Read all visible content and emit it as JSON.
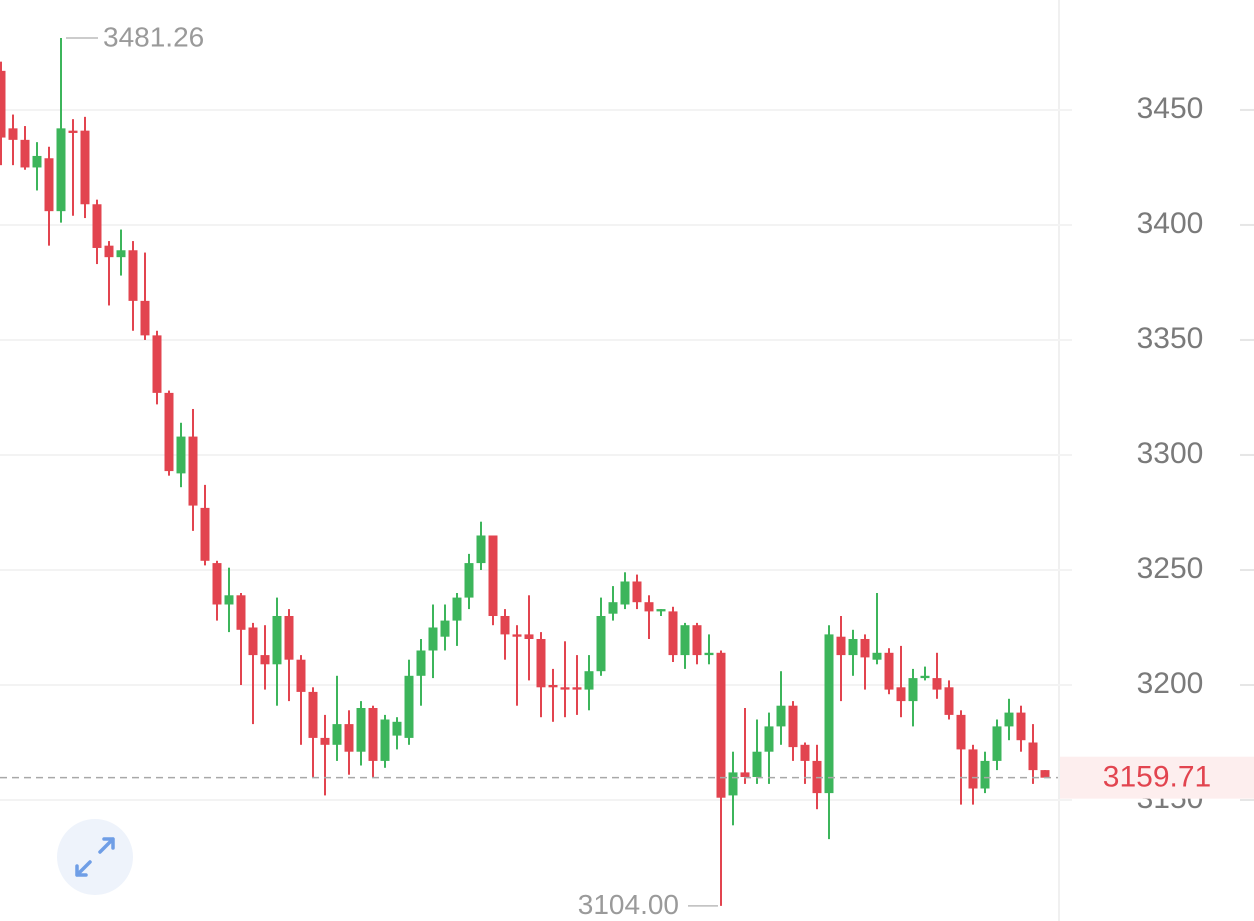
{
  "chart_data": {
    "type": "candlestick",
    "open": [
      3467,
      3442,
      3437,
      3425,
      3429,
      3406,
      3441,
      3441,
      3409,
      3391,
      3386,
      3389,
      3367,
      3352,
      3327,
      3292,
      3308,
      3277,
      3253,
      3235,
      3239,
      3225,
      3213,
      3209,
      3230,
      3211,
      3197,
      3177,
      3174,
      3183,
      3171,
      3190,
      3167,
      3178,
      3177,
      3204,
      3215,
      3221,
      3228,
      3238,
      3253,
      3265,
      3230,
      3222,
      3222,
      3220,
      3200,
      3199,
      3199,
      3198,
      3206,
      3231,
      3235,
      3245,
      3236,
      3232,
      3232,
      3213,
      3226,
      3213,
      3214,
      3152,
      3162,
      3160,
      3171,
      3182,
      3191,
      3174,
      3167,
      3153,
      3221,
      3213,
      3220,
      3211,
      3214,
      3199,
      3193,
      3203,
      3203,
      3199,
      3187,
      3172,
      3155,
      3167,
      3182,
      3188,
      3175,
      3163
    ],
    "high": [
      3471,
      3448,
      3443,
      3436,
      3434,
      3481.26,
      3446,
      3447,
      3411,
      3393,
      3398,
      3393,
      3388,
      3354,
      3328,
      3314,
      3320,
      3287,
      3254,
      3251,
      3240,
      3227,
      3226,
      3238,
      3233,
      3213,
      3199,
      3187,
      3204,
      3189,
      3193,
      3191,
      3187,
      3186,
      3211,
      3220,
      3235,
      3235,
      3240,
      3257,
      3271,
      3265,
      3233,
      3226,
      3239,
      3223,
      3207,
      3219,
      3213,
      3213,
      3238,
      3243,
      3249,
      3248,
      3239,
      3233,
      3234,
      3227,
      3227,
      3222,
      3215,
      3171,
      3190,
      3185,
      3188,
      3206,
      3193,
      3175,
      3174,
      3226,
      3230,
      3224,
      3222,
      3240,
      3216,
      3217,
      3207,
      3208,
      3214,
      3202,
      3189,
      3174,
      3171,
      3185,
      3194,
      3191,
      3183,
      3163
    ],
    "low": [
      3426,
      3426,
      3424,
      3415,
      3391,
      3401,
      3404,
      3403,
      3383,
      3365,
      3378,
      3354,
      3350,
      3322,
      3291,
      3286,
      3267,
      3252,
      3228,
      3223,
      3200,
      3183,
      3198,
      3191,
      3193,
      3174,
      3160,
      3152,
      3167,
      3161,
      3165,
      3160,
      3164,
      3172,
      3174,
      3191,
      3203,
      3215,
      3217,
      3233,
      3250,
      3226,
      3211,
      3191,
      3202,
      3186,
      3184,
      3186,
      3187,
      3189,
      3204,
      3228,
      3233,
      3233,
      3220,
      3230,
      3210,
      3207,
      3209,
      3209,
      3104,
      3139,
      3157,
      3157,
      3157,
      3174,
      3167,
      3157,
      3146,
      3133,
      3193,
      3204,
      3198,
      3209,
      3196,
      3186,
      3182,
      3202,
      3194,
      3185,
      3148,
      3148,
      3153,
      3163,
      3176,
      3171,
      3157,
      3159.71
    ],
    "close": [
      3438,
      3437,
      3425,
      3430,
      3406,
      3442,
      3440,
      3409,
      3390,
      3386,
      3389,
      3367,
      3352,
      3327,
      3293,
      3308,
      3278,
      3254,
      3235,
      3239,
      3224,
      3213,
      3209,
      3230,
      3211,
      3197,
      3177,
      3174,
      3183,
      3171,
      3190,
      3167,
      3185,
      3184,
      3204,
      3215,
      3225,
      3228,
      3238,
      3253,
      3265,
      3230,
      3222,
      3221,
      3220,
      3199,
      3199,
      3198,
      3198,
      3206,
      3230,
      3236,
      3245,
      3236,
      3232,
      3233,
      3213,
      3226,
      3213,
      3214,
      3151,
      3162,
      3160,
      3171,
      3182,
      3191,
      3173,
      3167,
      3153,
      3222,
      3213,
      3220,
      3212,
      3214,
      3198,
      3193,
      3203,
      3204,
      3198,
      3187,
      3172,
      3155,
      3167,
      3182,
      3188,
      3176,
      3163,
      3159.71
    ],
    "up_color": "#3cb55b",
    "down_color": "#e2444f",
    "ylim": [
      3097.4,
      3497.8
    ],
    "yticks": [
      3150,
      3200,
      3250,
      3300,
      3350,
      3400,
      3450
    ],
    "grid": true,
    "annotations": [
      {
        "value": 3481.26,
        "label": "3481.26"
      },
      {
        "value": 3104,
        "label": "3104.00"
      }
    ],
    "last_price": 3159.71
  }
}
